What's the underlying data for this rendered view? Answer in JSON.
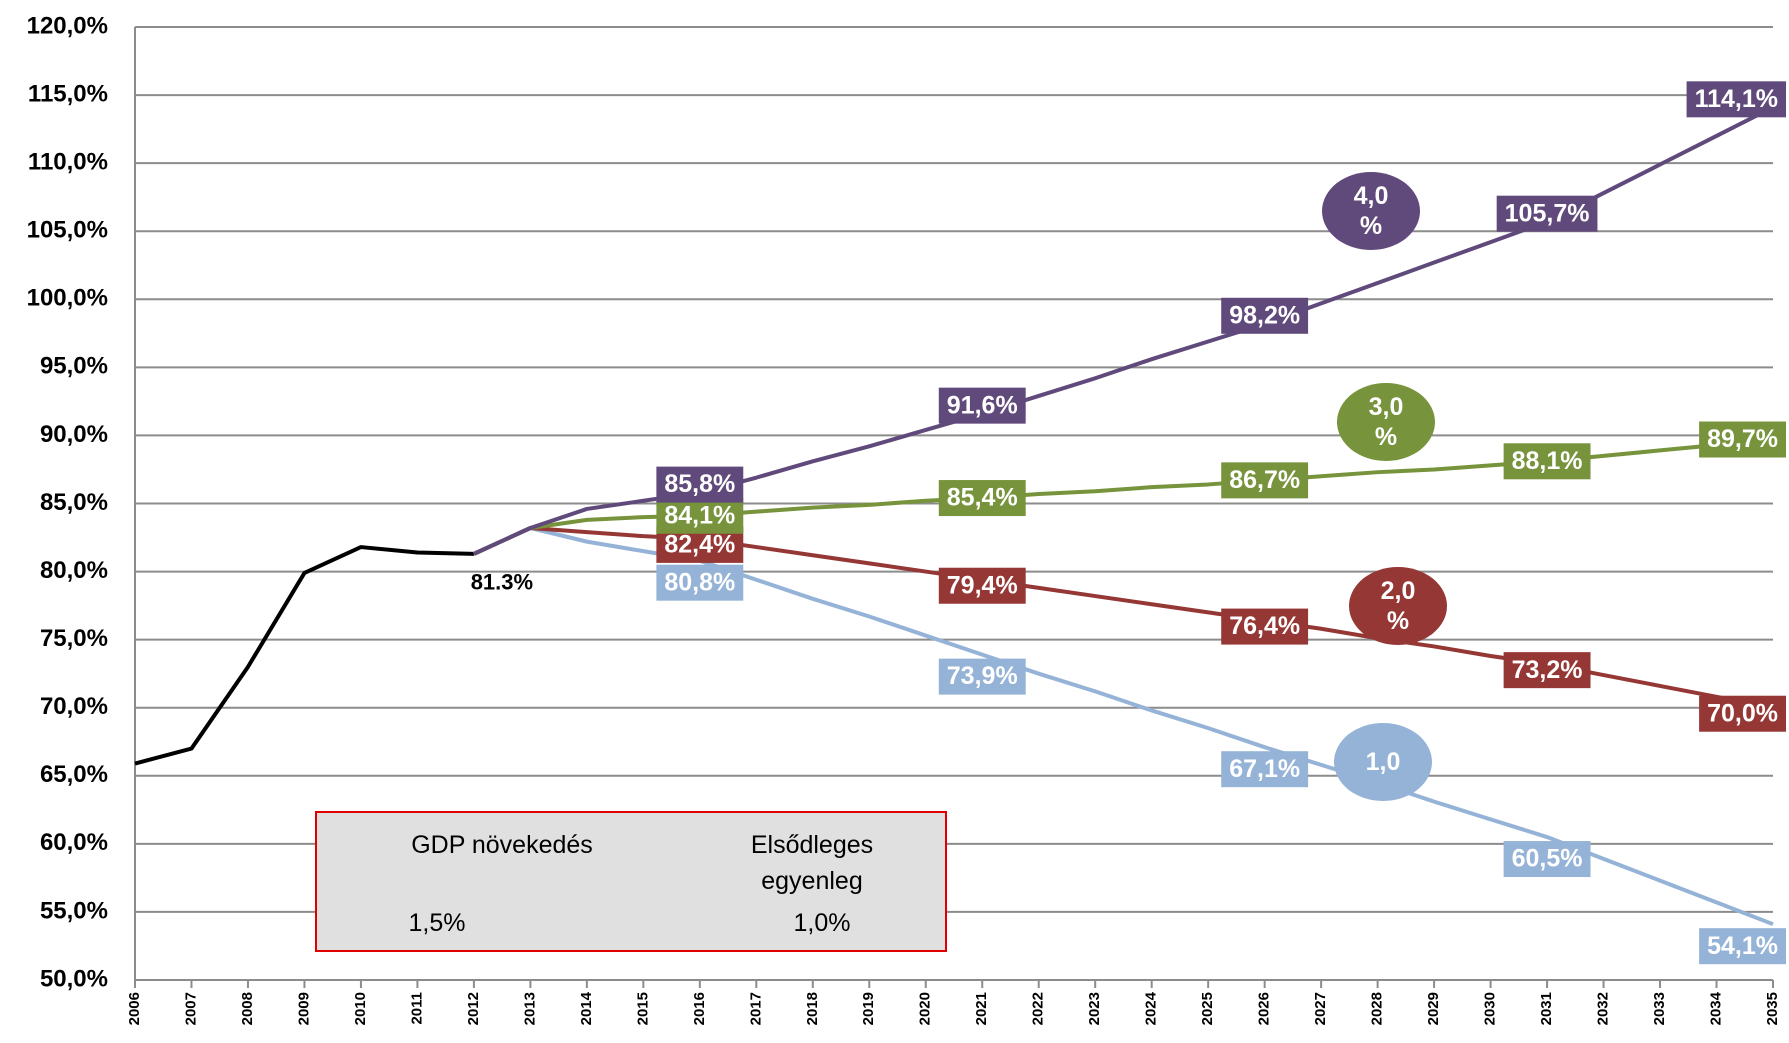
{
  "chart_data": {
    "type": "line",
    "categories": [
      "2006",
      "2007",
      "2008",
      "2009",
      "2010",
      "2011",
      "2012",
      "2013",
      "2014",
      "2015",
      "2016",
      "2017",
      "2018",
      "2019",
      "2020",
      "2021",
      "2022",
      "2023",
      "2024",
      "2025",
      "2026",
      "2027",
      "2028",
      "2029",
      "2030",
      "2031",
      "2032",
      "2033",
      "2034",
      "2035"
    ],
    "ylim": [
      50,
      120
    ],
    "yticks": [
      {
        "value": 50,
        "label": "50,0%"
      },
      {
        "value": 55,
        "label": "55,0%"
      },
      {
        "value": 60,
        "label": "60,0%"
      },
      {
        "value": 65,
        "label": "65,0%"
      },
      {
        "value": 70,
        "label": "70,0%"
      },
      {
        "value": 75,
        "label": "75,0%"
      },
      {
        "value": 80,
        "label": "80,0%"
      },
      {
        "value": 85,
        "label": "85,0%"
      },
      {
        "value": 90,
        "label": "90,0%"
      },
      {
        "value": 95,
        "label": "95,0%"
      },
      {
        "value": 100,
        "label": "100,0%"
      },
      {
        "value": 105,
        "label": "105,0%"
      },
      {
        "value": 110,
        "label": "110,0%"
      },
      {
        "value": 115,
        "label": "115,0%"
      },
      {
        "value": 120,
        "label": "120,0%"
      }
    ],
    "grid": true,
    "series": [
      {
        "color": "#000000",
        "values": [
          65.9,
          67.0,
          73.0,
          79.9,
          81.8,
          81.4,
          81.3,
          null,
          null,
          null,
          null,
          null,
          null,
          null,
          null,
          null,
          null,
          null,
          null,
          null,
          null,
          null,
          null,
          null,
          null,
          null,
          null,
          null,
          null,
          null
        ],
        "value_labels": [
          null,
          null,
          null,
          null,
          null,
          null,
          "81.3%",
          null,
          null,
          null,
          null,
          null,
          null,
          null,
          null,
          null,
          null,
          null,
          null,
          null,
          null,
          null,
          null,
          null,
          null,
          null,
          null,
          null,
          null,
          null
        ]
      },
      {
        "name": "1,0",
        "color": "#95b3d7",
        "values": [
          null,
          null,
          null,
          null,
          null,
          null,
          81.3,
          83.2,
          82.2,
          81.5,
          80.8,
          79.4,
          78.0,
          76.7,
          75.3,
          73.9,
          72.5,
          71.2,
          69.8,
          68.5,
          67.1,
          65.8,
          64.5,
          63.1,
          61.8,
          60.5,
          58.9,
          57.3,
          55.7,
          54.1
        ],
        "value_labels": [
          null,
          null,
          null,
          null,
          null,
          null,
          null,
          null,
          null,
          null,
          "80,8%",
          null,
          null,
          null,
          null,
          "73,9%",
          null,
          null,
          null,
          null,
          "67,1%",
          null,
          null,
          null,
          null,
          "60,5%",
          null,
          null,
          null,
          "54,1%"
        ]
      },
      {
        "name": "2,0 %",
        "color": "#953735",
        "values": [
          null,
          null,
          null,
          null,
          null,
          null,
          81.3,
          83.2,
          82.9,
          82.6,
          82.4,
          81.8,
          81.2,
          80.6,
          80.0,
          79.4,
          78.8,
          78.2,
          77.6,
          77.0,
          76.4,
          75.8,
          75.1,
          74.5,
          73.8,
          73.2,
          72.4,
          71.6,
          70.8,
          70.0
        ],
        "value_labels": [
          null,
          null,
          null,
          null,
          null,
          null,
          null,
          null,
          null,
          null,
          "82,4%",
          null,
          null,
          null,
          null,
          "79,4%",
          null,
          null,
          null,
          null,
          "76,4%",
          null,
          null,
          null,
          null,
          "73,2%",
          null,
          null,
          null,
          "70,0%"
        ]
      },
      {
        "name": "3,0 %",
        "color": "#77933c",
        "values": [
          null,
          null,
          null,
          null,
          null,
          null,
          81.3,
          83.2,
          83.8,
          84.0,
          84.1,
          84.4,
          84.7,
          84.9,
          85.2,
          85.4,
          85.7,
          85.9,
          86.2,
          86.4,
          86.7,
          87.0,
          87.3,
          87.5,
          87.8,
          88.1,
          88.5,
          88.9,
          89.3,
          89.7
        ],
        "value_labels": [
          null,
          null,
          null,
          null,
          null,
          null,
          null,
          null,
          null,
          null,
          "84,1%",
          null,
          null,
          null,
          null,
          "85,4%",
          null,
          null,
          null,
          null,
          "86,7%",
          null,
          null,
          null,
          null,
          "88,1%",
          null,
          null,
          null,
          "89,7%"
        ]
      },
      {
        "name": "4,0 %",
        "color": "#604a7b",
        "values": [
          null,
          null,
          null,
          null,
          null,
          null,
          81.3,
          83.2,
          84.6,
          85.2,
          85.8,
          86.9,
          88.1,
          89.2,
          90.4,
          91.6,
          92.9,
          94.2,
          95.6,
          96.9,
          98.2,
          99.7,
          101.2,
          102.7,
          104.2,
          105.7,
          107.8,
          109.9,
          112.0,
          114.1
        ],
        "value_labels": [
          null,
          null,
          null,
          null,
          null,
          null,
          null,
          null,
          null,
          null,
          "85,8%",
          null,
          null,
          null,
          null,
          "91,6%",
          null,
          null,
          null,
          null,
          "98,2%",
          null,
          null,
          null,
          null,
          "105,7%",
          null,
          null,
          null,
          "114,1%"
        ]
      }
    ],
    "info_box": {
      "headers": [
        "GDP növekedés",
        "Elsődleges egyenleg"
      ],
      "values": [
        "1,5%",
        "1,0%"
      ]
    }
  }
}
